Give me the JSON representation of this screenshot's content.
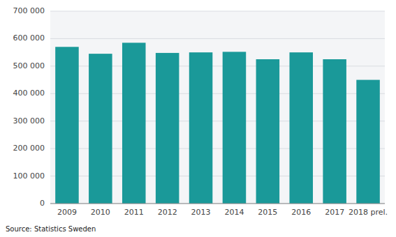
{
  "chart_data": {
    "type": "bar",
    "categories": [
      "2009",
      "2010",
      "2011",
      "2012",
      "2013",
      "2014",
      "2015",
      "2016",
      "2017",
      "2018 prel."
    ],
    "values": [
      570000,
      545000,
      585000,
      548000,
      550000,
      552000,
      525000,
      550000,
      525000,
      450000
    ],
    "color": "#1a9999",
    "ylim": [
      0,
      700000
    ],
    "yticks": [
      0,
      {
        "value": 100000,
        "label": "100 000"
      },
      {
        "value": 200000,
        "label": "200 000"
      },
      {
        "value": 300000,
        "label": "300 000"
      },
      {
        "value": 400000,
        "label": "400 000"
      },
      {
        "value": 500000,
        "label": "500 000"
      },
      {
        "value": 600000,
        "label": "600 000"
      },
      {
        "value": 700000,
        "label": "700 000"
      }
    ],
    "grid": true,
    "source": "Source: Statistics Sweden"
  }
}
